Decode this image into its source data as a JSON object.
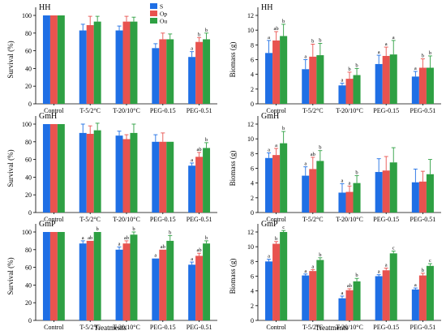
{
  "colors": {
    "S": "#1f6fe5",
    "Op": "#e8534f",
    "Ou": "#2ea043"
  },
  "legend": [
    {
      "key": "S",
      "label": "S"
    },
    {
      "key": "Op",
      "label": "Op"
    },
    {
      "key": "Ou",
      "label": "Ou"
    }
  ],
  "xlabel": "Treatments",
  "chart_data": [
    {
      "type": "bar",
      "title": "HH",
      "ylabel": "Survival (%)",
      "ylim": [
        0,
        100
      ],
      "yticks": [
        0,
        20,
        40,
        60,
        80,
        100
      ],
      "categories": [
        "Control",
        "T-5/2°C",
        "T-20/10°C",
        "PEG-0.15",
        "PEG-0.51"
      ],
      "series": [
        {
          "name": "S",
          "values": [
            100,
            83,
            83,
            63,
            53
          ],
          "errors": [
            0,
            7,
            5,
            5,
            6
          ],
          "labels": [
            "",
            "",
            "",
            "",
            "a"
          ]
        },
        {
          "name": "Op",
          "values": [
            100,
            89,
            93,
            73,
            70
          ],
          "errors": [
            0,
            10,
            6,
            7,
            5
          ],
          "labels": [
            "",
            "",
            "",
            "",
            "b"
          ]
        },
        {
          "name": "Ou",
          "values": [
            100,
            93,
            93,
            73,
            73
          ],
          "errors": [
            0,
            6,
            5,
            6,
            7
          ],
          "labels": [
            "",
            "",
            "",
            "",
            "b"
          ]
        }
      ]
    },
    {
      "type": "bar",
      "title": "HH",
      "ylabel": "Biomass (g)",
      "ylim": [
        0,
        12
      ],
      "yticks": [
        0,
        2,
        4,
        6,
        8,
        10,
        12
      ],
      "categories": [
        "Control",
        "T-5/2°C",
        "T-20/10°C",
        "PEG-0.15",
        "PEG-0.51"
      ],
      "series": [
        {
          "name": "S",
          "values": [
            6.9,
            4.7,
            2.5,
            5.4,
            3.7
          ],
          "errors": [
            1.7,
            1.3,
            0.3,
            1.2,
            0.7
          ],
          "labels": [
            "a",
            "a",
            "a",
            "a",
            "a"
          ]
        },
        {
          "name": "Op",
          "values": [
            8.6,
            6.4,
            3.4,
            6.5,
            4.9
          ],
          "errors": [
            1.2,
            1.7,
            0.9,
            1.2,
            1.2
          ],
          "labels": [
            "ab",
            "b",
            "b",
            "a",
            "b"
          ]
        },
        {
          "name": "Ou",
          "values": [
            9.2,
            6.6,
            3.9,
            6.7,
            4.9
          ],
          "errors": [
            1.6,
            1.6,
            0.9,
            1.9,
            1.6
          ],
          "labels": [
            "b",
            "b",
            "b",
            "a",
            "b"
          ]
        }
      ]
    },
    {
      "type": "bar",
      "title": "GmH",
      "ylabel": "Survival (%)",
      "ylim": [
        0,
        100
      ],
      "yticks": [
        0,
        20,
        40,
        60,
        80,
        100
      ],
      "categories": [
        "Control",
        "T-5/2°C",
        "T-20/10°C",
        "PEG-0.15",
        "PEG-0.51"
      ],
      "series": [
        {
          "name": "S",
          "values": [
            100,
            90,
            87,
            80,
            53
          ],
          "errors": [
            0,
            10,
            5,
            8,
            3
          ],
          "labels": [
            "",
            "",
            "",
            "",
            "a"
          ]
        },
        {
          "name": "Op",
          "values": [
            100,
            89,
            83,
            80,
            63
          ],
          "errors": [
            0,
            9,
            5,
            10,
            5
          ],
          "labels": [
            "",
            "",
            "",
            "",
            "ab"
          ]
        },
        {
          "name": "Ou",
          "values": [
            100,
            93,
            90,
            80,
            73
          ],
          "errors": [
            0,
            8,
            10,
            0,
            6
          ],
          "labels": [
            "",
            "",
            "",
            "",
            "b"
          ]
        }
      ]
    },
    {
      "type": "bar",
      "title": "GmH",
      "ylabel": "Biomass (g)",
      "ylim": [
        0,
        12
      ],
      "yticks": [
        0,
        2,
        4,
        6,
        8,
        10,
        12
      ],
      "categories": [
        "Control",
        "T-5/2°C",
        "T-20/10°C",
        "PEG-0.15",
        "PEG-0.51"
      ],
      "series": [
        {
          "name": "S",
          "values": [
            7.4,
            5.0,
            2.7,
            5.5,
            4.1
          ],
          "errors": [
            0.7,
            1.2,
            1.2,
            1.8,
            1.8
          ],
          "labels": [
            "a",
            "a",
            "a",
            "",
            ""
          ]
        },
        {
          "name": "Op",
          "values": [
            7.8,
            5.9,
            2.8,
            5.7,
            4.2
          ],
          "errors": [
            0.9,
            1.6,
            0.8,
            1.9,
            1.4
          ],
          "labels": [
            "a",
            "ab",
            "a",
            "",
            ""
          ]
        },
        {
          "name": "Ou",
          "values": [
            9.4,
            7.0,
            4.0,
            6.8,
            5.2
          ],
          "errors": [
            1.6,
            1.4,
            1.0,
            2.0,
            2.0
          ],
          "labels": [
            "b",
            "b",
            "b",
            "",
            ""
          ]
        }
      ]
    },
    {
      "type": "bar",
      "title": "GmP",
      "ylabel": "Survival (%)",
      "ylim": [
        0,
        100
      ],
      "yticks": [
        0,
        20,
        40,
        60,
        80,
        100
      ],
      "categories": [
        "Control",
        "T-5/2°C",
        "T-20/10°C",
        "PEG-0.15",
        "PEG-0.51"
      ],
      "series": [
        {
          "name": "S",
          "values": [
            100,
            87,
            80,
            70,
            63
          ],
          "errors": [
            0,
            3,
            3,
            0,
            3
          ],
          "labels": [
            "",
            "a",
            "a",
            "a",
            "a"
          ]
        },
        {
          "name": "Op",
          "values": [
            100,
            90,
            87,
            80,
            73
          ],
          "errors": [
            0,
            0,
            3,
            0,
            3
          ],
          "labels": [
            "",
            "ab",
            "ab",
            "ab",
            "ab"
          ]
        },
        {
          "name": "Ou",
          "values": [
            100,
            100,
            97,
            90,
            87
          ],
          "errors": [
            0,
            0,
            3,
            6,
            3
          ],
          "labels": [
            "",
            "b",
            "b",
            "b",
            "b"
          ]
        }
      ]
    },
    {
      "type": "bar",
      "title": "GmP",
      "ylabel": "Biomass (g)",
      "ylim": [
        0,
        12
      ],
      "yticks": [
        0,
        2,
        4,
        6,
        8,
        10,
        12
      ],
      "categories": [
        "Control",
        "T-5/2°C",
        "T-20/10°C",
        "PEG-0.15",
        "PEG-0.51"
      ],
      "series": [
        {
          "name": "S",
          "values": [
            8.0,
            6.1,
            3.0,
            6.0,
            4.2
          ],
          "errors": [
            0.3,
            0.2,
            0.3,
            0.2,
            0.2
          ],
          "labels": [
            "a",
            "a",
            "a",
            "a",
            "a"
          ]
        },
        {
          "name": "Op",
          "values": [
            10.4,
            6.7,
            4.1,
            6.8,
            6.1
          ],
          "errors": [
            0.3,
            0.2,
            0.2,
            0.3,
            0.3
          ],
          "labels": [
            "b",
            "a",
            "ab",
            "a",
            "b"
          ]
        },
        {
          "name": "Ou",
          "values": [
            12.0,
            8.2,
            5.3,
            9.1,
            7.4
          ],
          "errors": [
            0.2,
            0.3,
            0.4,
            0.3,
            0.3
          ],
          "labels": [
            "c",
            "b",
            "b",
            "c",
            "c"
          ]
        }
      ]
    }
  ]
}
